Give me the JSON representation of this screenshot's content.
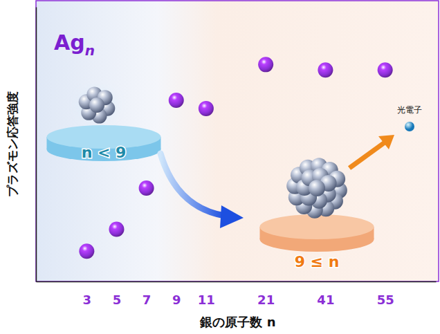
{
  "chart_data": {
    "type": "scatter",
    "title": {
      "text": "Ag",
      "subscript": "n"
    },
    "x_label": "銀の原子数 n",
    "y_label": "プラズモン応答強度",
    "categories": [
      3,
      5,
      7,
      9,
      11,
      null,
      21,
      null,
      41,
      null,
      55
    ],
    "values": [
      11,
      19,
      34,
      66,
      63,
      null,
      79,
      null,
      77,
      null,
      77
    ],
    "ylim": [
      0,
      100
    ],
    "tick_labels": "x",
    "color": "#8b2fd6",
    "marker": "circle",
    "annotations": [
      {
        "text": "n < 9"
      },
      {
        "text": "9 ≤ n"
      },
      {
        "text": "光電子"
      }
    ]
  }
}
